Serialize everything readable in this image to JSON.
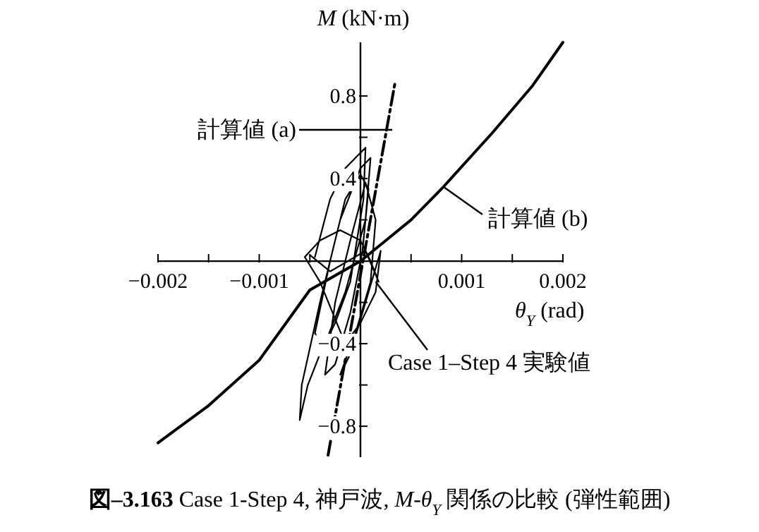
{
  "chart_data": {
    "type": "line",
    "title": "**図–3.163** Case 1-Step 4, 神戸波, *M*-*θ*$_{Y}$ 関係の比較 (弾性範囲)",
    "xlabel": "*θ*$_{Y}$ (rad)",
    "ylabel": "*M* (kN·m)",
    "xlim": [
      -0.002,
      0.002
    ],
    "ylim": [
      -0.95,
      1.06
    ],
    "xticks": [
      {
        "value": -0.002,
        "label": "−0.002"
      },
      {
        "value": -0.0015,
        "label": null
      },
      {
        "value": -0.001,
        "label": "−0.001"
      },
      {
        "value": -0.0005,
        "label": null
      },
      {
        "value": 0.0005,
        "label": null
      },
      {
        "value": 0.001,
        "label": "0.001"
      },
      {
        "value": 0.0015,
        "label": null
      },
      {
        "value": 0.002,
        "label": "0.002"
      }
    ],
    "yticks": [
      {
        "value": -0.8,
        "label": "−0.8"
      },
      {
        "value": -0.6,
        "label": null
      },
      {
        "value": -0.4,
        "label": "−0.4"
      },
      {
        "value": -0.2,
        "label": null
      },
      {
        "value": 0.2,
        "label": null
      },
      {
        "value": 0.4,
        "label": "0.4"
      },
      {
        "value": 0.6,
        "label": null
      },
      {
        "value": 0.8,
        "label": "0.8"
      }
    ],
    "grid": false,
    "series": [
      {
        "color": "#000000",
        "line_style": "solid",
        "x": [
          -0.00045,
          -0.0003,
          -0.00015,
          -5e-05,
          5e-05,
          3e-05,
          -0.0001,
          -0.00025,
          -0.0004,
          -0.00052,
          -0.0006,
          -0.00058,
          -0.0004,
          -0.0002,
          0,
          0.0001,
          5e-05,
          -0.00015,
          -0.00035,
          -0.00045,
          -0.0003,
          -0.00015,
          0,
          8e-05,
          2e-05,
          -0.0001,
          -0.00025,
          -0.00035,
          -0.00025,
          -0.0001,
          5e-05,
          0.00015,
          0.0001,
          -5e-05,
          -0.0002,
          -0.0001,
          5e-05,
          0.0002,
          0.00015,
          0,
          -0.00015,
          -0.0004,
          -0.00055,
          -0.0004,
          -0.0002,
          0,
          0.0001,
          0.00018,
          5e-05,
          -0.0003,
          -0.0005
        ],
        "values": [
          0.02,
          0.3,
          0.45,
          0.5,
          0.55,
          0.3,
          -0.1,
          -0.3,
          -0.45,
          -0.6,
          -0.77,
          -0.6,
          -0.2,
          0.2,
          0.45,
          0.5,
          0.2,
          -0.15,
          -0.4,
          -0.35,
          0,
          0.3,
          0.42,
          0.35,
          0.05,
          -0.25,
          -0.5,
          -0.55,
          -0.2,
          0.1,
          0.38,
          0.2,
          -0.1,
          -0.35,
          -0.55,
          -0.45,
          -0.2,
          0.05,
          -0.15,
          -0.3,
          -0.4,
          -0.1,
          0.02,
          0.1,
          0.15,
          0.1,
          0,
          -0.1,
          0.05,
          -0.05,
          0.03
        ]
      },
      {
        "color": "#000000",
        "line_style": "dashed",
        "x": [
          -0.00032,
          0.00034
        ],
        "values": [
          -0.94,
          0.86
        ]
      },
      {
        "color": "#000000",
        "line_style": "solid",
        "x": [
          -0.002,
          -0.0015,
          -0.001,
          -0.0005,
          0,
          0.0002,
          0.0005,
          0.00082,
          0.0013,
          0.0017,
          0.002
        ],
        "values": [
          -0.88,
          -0.7,
          -0.48,
          -0.14,
          0,
          0.08,
          0.2,
          0.36,
          0.62,
          0.85,
          1.06
        ]
      }
    ],
    "annotations": [
      "計算値 (a)",
      {
        "text": "計算値 (b)",
        "x": 0.00082,
        "y": 0.36
      },
      {
        "text": "Case 1–Step 4 実験値",
        "x": 0.00015,
        "y": -0.1
      }
    ]
  }
}
